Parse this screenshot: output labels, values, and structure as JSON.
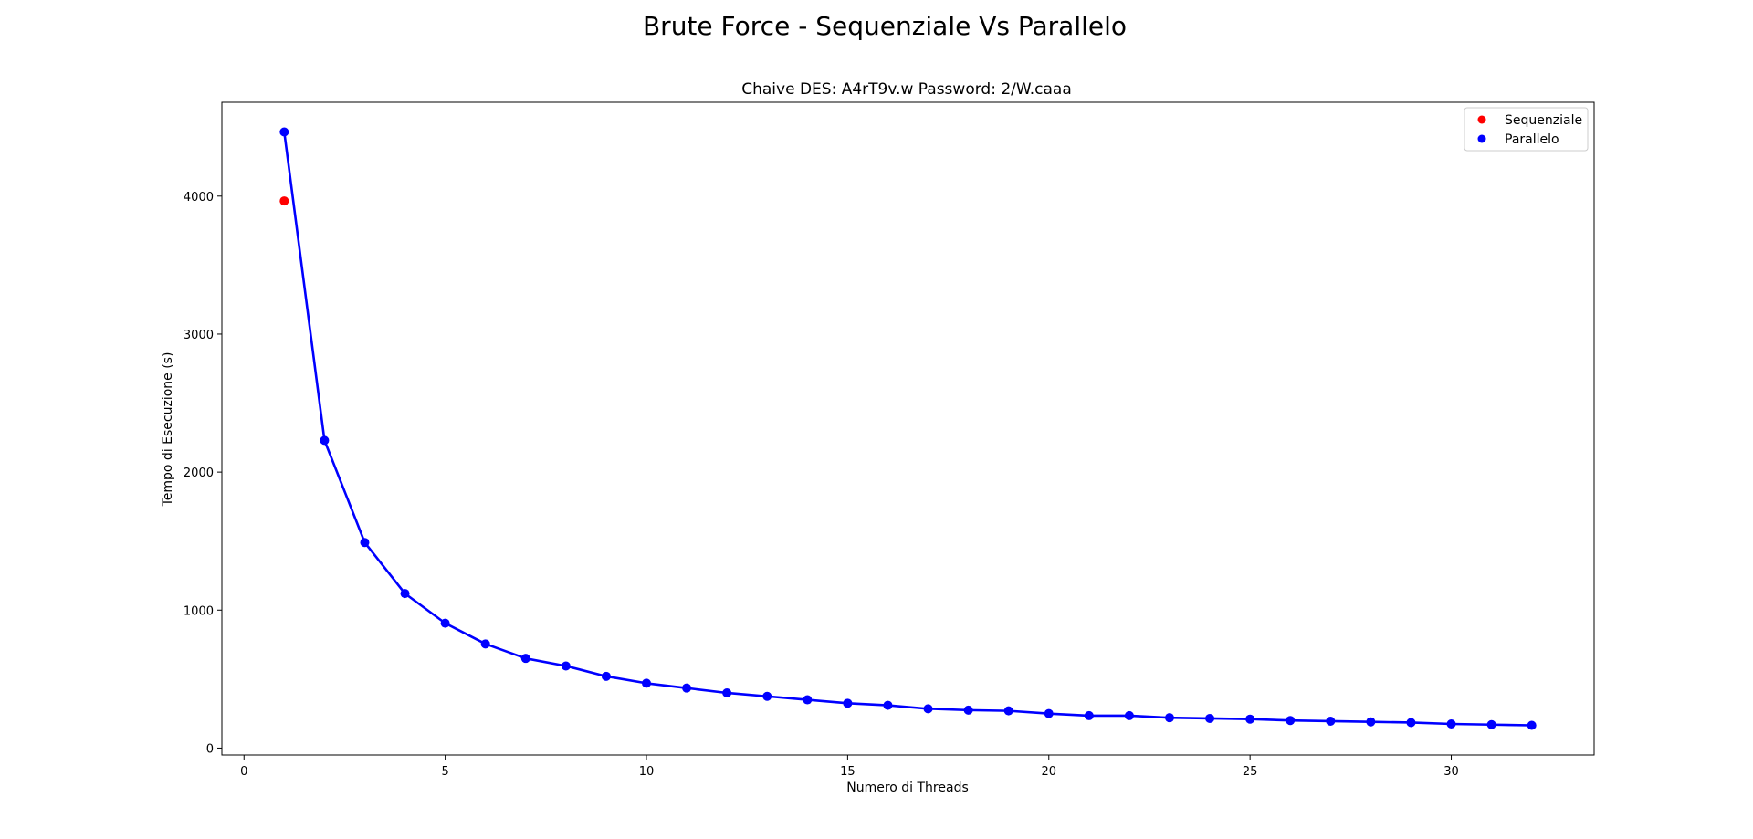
{
  "figure": {
    "suptitle": "Brute Force - Sequenziale Vs Parallelo"
  },
  "chart_data": {
    "type": "line",
    "title": "Chaive DES: A4rT9v.w Password: 2/W.caaa",
    "xlabel": "Numero di Threads",
    "ylabel": "Tempo di Esecuzione (s)",
    "xlim": [
      -0.55,
      33.55
    ],
    "ylim": [
      -50,
      4680
    ],
    "xticks": [
      0,
      5,
      10,
      15,
      20,
      25,
      30
    ],
    "yticks": [
      0,
      1000,
      2000,
      3000,
      4000
    ],
    "grid": false,
    "legend_position": "upper right",
    "series": [
      {
        "name": "Sequenziale",
        "kind": "scatter",
        "color": "#ff0000",
        "x": [
          1
        ],
        "y": [
          3965
        ]
      },
      {
        "name": "Parallelo",
        "kind": "line+markers",
        "color": "#0000ff",
        "x": [
          1,
          2,
          3,
          4,
          5,
          6,
          7,
          8,
          9,
          10,
          11,
          12,
          13,
          14,
          15,
          16,
          17,
          18,
          19,
          20,
          21,
          22,
          23,
          24,
          25,
          26,
          27,
          28,
          29,
          30,
          31,
          32
        ],
        "y": [
          4465,
          2230,
          1490,
          1120,
          905,
          755,
          650,
          595,
          520,
          470,
          435,
          400,
          375,
          350,
          325,
          310,
          285,
          275,
          270,
          250,
          235,
          235,
          220,
          215,
          210,
          200,
          195,
          190,
          185,
          175,
          170,
          165
        ]
      }
    ]
  }
}
